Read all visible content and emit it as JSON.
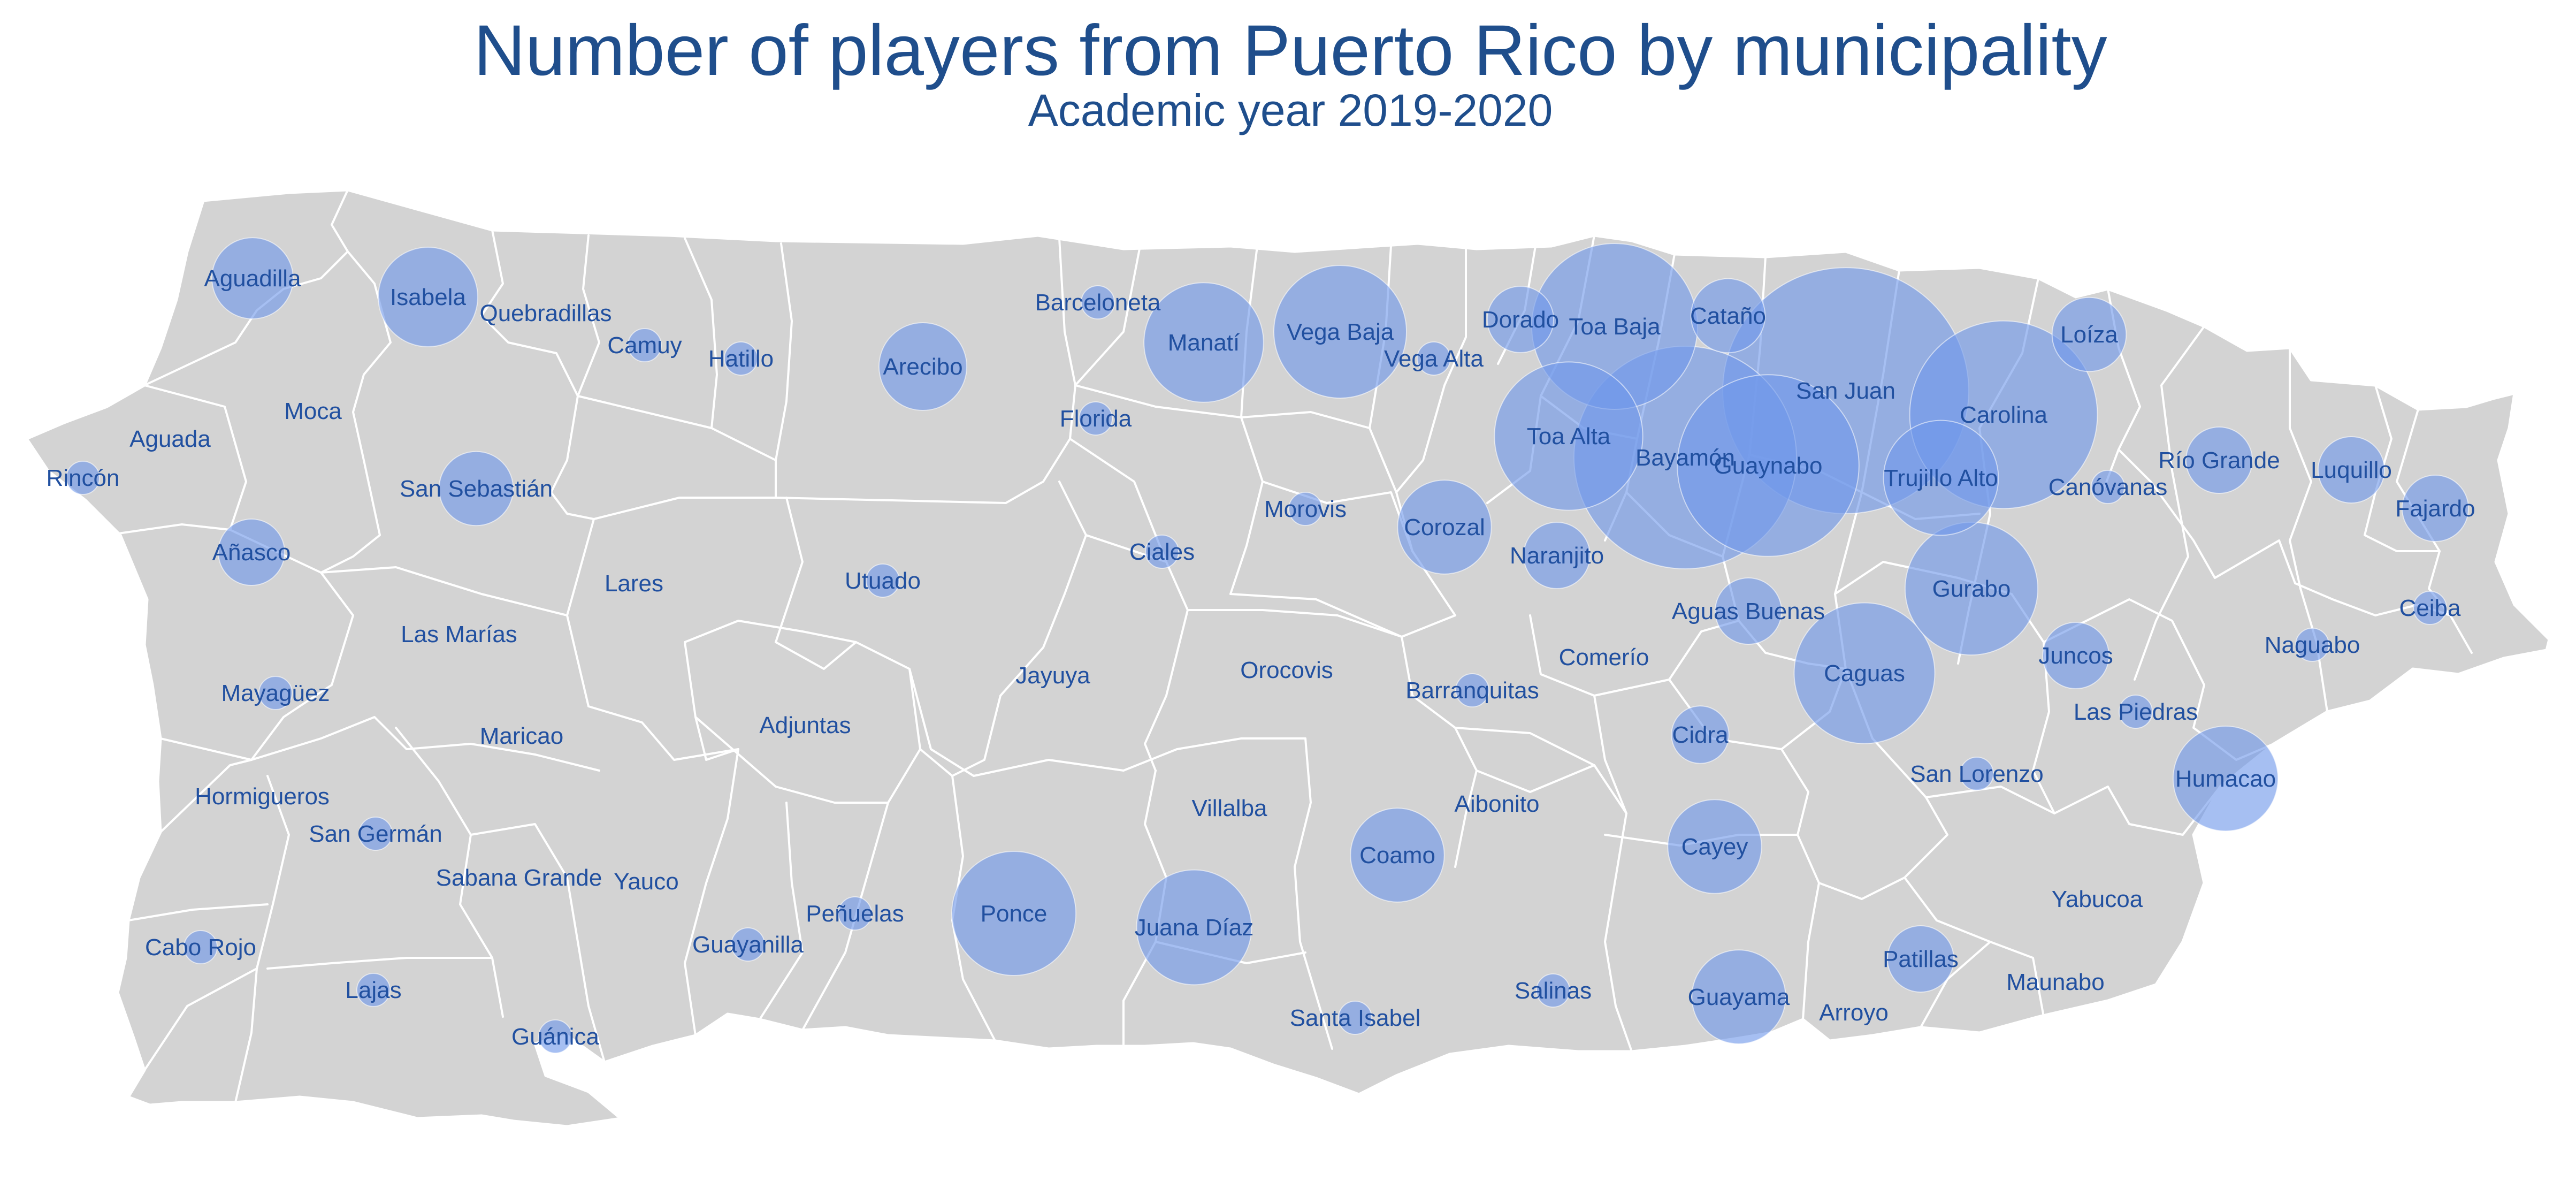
{
  "title": "Number of players from Puerto Rico by municipality",
  "subtitle": "Academic year 2019-2020",
  "colors": {
    "title": "#1f4e8c",
    "land": "#d3d3d3",
    "border": "#ffffff",
    "bubble": "#6f98ea",
    "label": "#2150a0"
  },
  "municipalities": [
    {
      "name": "Aguadilla",
      "players": 6
    },
    {
      "name": "Isabela",
      "players": 9
    },
    {
      "name": "Quebradillas",
      "players": 0
    },
    {
      "name": "Camuy",
      "players": 1
    },
    {
      "name": "Hatillo",
      "players": 1
    },
    {
      "name": "Arecibo",
      "players": 7
    },
    {
      "name": "Barceloneta",
      "players": 1
    },
    {
      "name": "Manatí",
      "players": 13
    },
    {
      "name": "Vega Baja",
      "players": 16
    },
    {
      "name": "Vega Alta",
      "players": 1
    },
    {
      "name": "Dorado",
      "players": 4
    },
    {
      "name": "Toa Baja",
      "players": 25
    },
    {
      "name": "Cataño",
      "players": 5
    },
    {
      "name": "San Juan",
      "players": 55
    },
    {
      "name": "Loíza",
      "players": 5
    },
    {
      "name": "Carolina",
      "players": 32
    },
    {
      "name": "Aguada",
      "players": 0
    },
    {
      "name": "Moca",
      "players": 0
    },
    {
      "name": "Rincón",
      "players": 1
    },
    {
      "name": "San Sebastián",
      "players": 5
    },
    {
      "name": "Añasco",
      "players": 4
    },
    {
      "name": "Lares",
      "players": 0
    },
    {
      "name": "Las Marías",
      "players": 0
    },
    {
      "name": "Mayagüez",
      "players": 1
    },
    {
      "name": "Maricao",
      "players": 0
    },
    {
      "name": "Hormigueros",
      "players": 0
    },
    {
      "name": "San Germán",
      "players": 1
    },
    {
      "name": "Sabana Grande",
      "players": 0
    },
    {
      "name": "Yauco",
      "players": 0
    },
    {
      "name": "Cabo Rojo",
      "players": 1
    },
    {
      "name": "Lajas",
      "players": 1
    },
    {
      "name": "Guánica",
      "players": 1
    },
    {
      "name": "Guayanilla",
      "players": 1
    },
    {
      "name": "Peñuelas",
      "players": 1
    },
    {
      "name": "Florida",
      "players": 1
    },
    {
      "name": "Utuado",
      "players": 1
    },
    {
      "name": "Ciales",
      "players": 1
    },
    {
      "name": "Morovis",
      "players": 1
    },
    {
      "name": "Corozal",
      "players": 8
    },
    {
      "name": "Toa Alta",
      "players": 20
    },
    {
      "name": "Bayamón",
      "players": 45
    },
    {
      "name": "Guaynabo",
      "players": 30
    },
    {
      "name": "Trujillo Alto",
      "players": 12
    },
    {
      "name": "Canóvanas",
      "players": 1
    },
    {
      "name": "Río Grande",
      "players": 4
    },
    {
      "name": "Luquillo",
      "players": 4
    },
    {
      "name": "Fajardo",
      "players": 4
    },
    {
      "name": "Naranjito",
      "players": 4
    },
    {
      "name": "Jayuya",
      "players": 0
    },
    {
      "name": "Adjuntas",
      "players": 0
    },
    {
      "name": "Orocovis",
      "players": 0
    },
    {
      "name": "Barranquitas",
      "players": 1
    },
    {
      "name": "Comerío",
      "players": 0
    },
    {
      "name": "Aguas Buenas",
      "players": 4
    },
    {
      "name": "Gurabo",
      "players": 16
    },
    {
      "name": "Juncos",
      "players": 4
    },
    {
      "name": "Caguas",
      "players": 18
    },
    {
      "name": "Naguabo",
      "players": 1
    },
    {
      "name": "Ceiba",
      "players": 1
    },
    {
      "name": "Las Piedras",
      "players": 1
    },
    {
      "name": "Cidra",
      "players": 3
    },
    {
      "name": "San Lorenzo",
      "players": 1
    },
    {
      "name": "Humacao",
      "players": 10
    },
    {
      "name": "Villalba",
      "players": 0
    },
    {
      "name": "Aibonito",
      "players": 0
    },
    {
      "name": "Coamo",
      "players": 8
    },
    {
      "name": "Cayey",
      "players": 8
    },
    {
      "name": "Ponce",
      "players": 14
    },
    {
      "name": "Juana Díaz",
      "players": 12
    },
    {
      "name": "Yabucoa",
      "players": 0
    },
    {
      "name": "Patillas",
      "players": 4
    },
    {
      "name": "Santa Isabel",
      "players": 1
    },
    {
      "name": "Salinas",
      "players": 1
    },
    {
      "name": "Guayama",
      "players": 8
    },
    {
      "name": "Arroyo",
      "players": 0
    },
    {
      "name": "Maunabo",
      "players": 0
    }
  ]
}
